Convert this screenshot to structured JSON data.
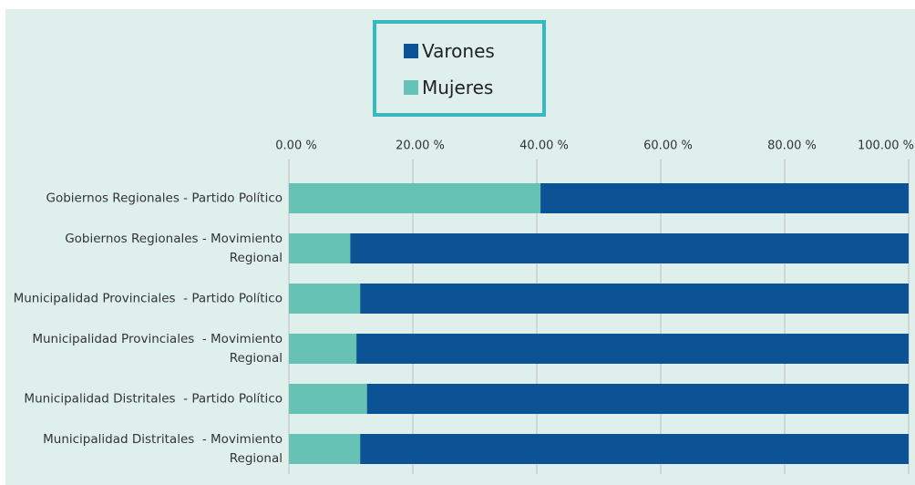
{
  "chart_data": {
    "type": "stacked-bar-horizontal",
    "categories": [
      "Gobiernos Regionales - Partido Político",
      "Gobiernos Regionales - Movimiento Regional",
      "Municipalidad Provinciales  - Partido Político",
      "Municipalidad Provinciales  - Movimiento Regional",
      "Municipalidad Distritales  - Partido Político",
      "Municipalidad Distritales  - Movimiento Regional"
    ],
    "series": [
      {
        "name": "Varones",
        "color": "#0b5394",
        "values": [
          59.4,
          90.1,
          88.5,
          89.1,
          87.4,
          88.5
        ]
      },
      {
        "name": "Mujeres",
        "color": "#66c2b4",
        "values": [
          40.6,
          9.9,
          11.5,
          10.9,
          12.6,
          11.5
        ]
      }
    ],
    "xlim": [
      0,
      100
    ],
    "xticks": [
      {
        "value": 0,
        "label": "0.00 %"
      },
      {
        "value": 20,
        "label": "20.00 %"
      },
      {
        "value": 40,
        "label": "40.00 %"
      },
      {
        "value": 60,
        "label": "60.00 %"
      },
      {
        "value": 80,
        "label": "80.00 %"
      },
      {
        "value": 100,
        "label": "100.00 %"
      }
    ],
    "grid": true,
    "legend": "top"
  }
}
